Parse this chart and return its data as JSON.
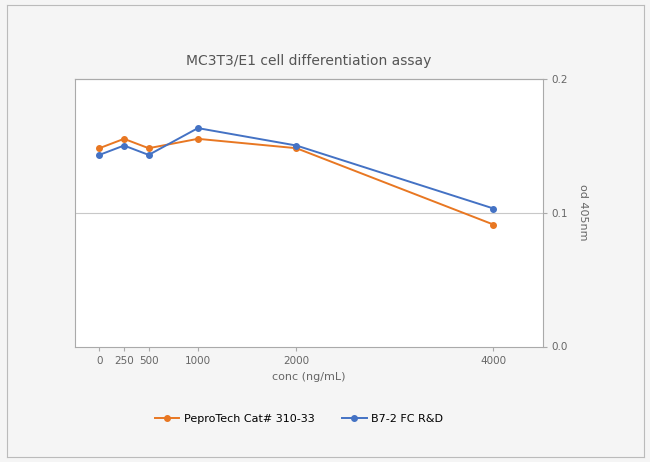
{
  "title": "MC3T3/E1 cell differentiation assay",
  "xlabel": "conc (ng/mL)",
  "ylabel": "od 405nm",
  "x_values": [
    0,
    250,
    500,
    1000,
    2000,
    4000
  ],
  "series": [
    {
      "label": "PeproTech Cat# 310-33",
      "color": "#E87722",
      "marker": "o",
      "y_values": [
        0.148,
        0.155,
        0.148,
        0.155,
        0.148,
        0.091
      ]
    },
    {
      "label": "B7-2 FC R&D",
      "color": "#4472C4",
      "marker": "o",
      "y_values": [
        0.143,
        0.15,
        0.143,
        0.163,
        0.15,
        0.103
      ]
    }
  ],
  "ylim": [
    0.0,
    0.2
  ],
  "yticks": [
    0.0,
    0.1,
    0.2
  ],
  "xticks": [
    0,
    250,
    500,
    1000,
    2000,
    4000
  ],
  "grid_y": [
    0.1
  ],
  "background_color": "#f5f5f5",
  "plot_bg_color": "#ffffff",
  "title_fontsize": 10,
  "axis_label_fontsize": 8,
  "tick_fontsize": 7.5,
  "legend_fontsize": 8,
  "line_width": 1.4,
  "marker_size": 4
}
